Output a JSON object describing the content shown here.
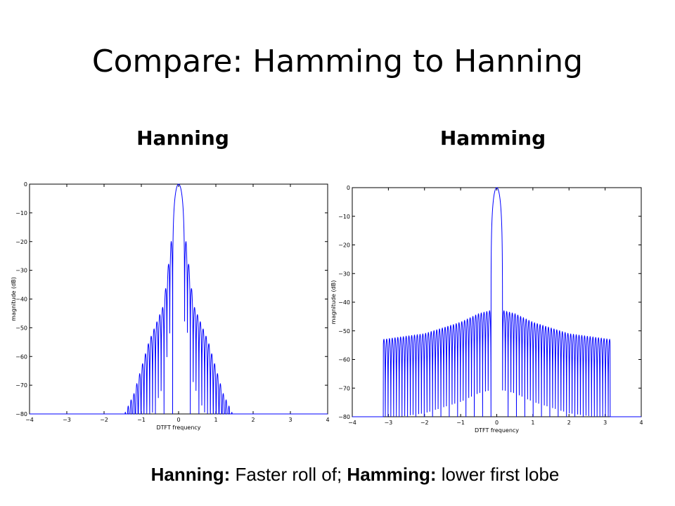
{
  "slide": {
    "title": "Compare: Hamming to Hanning",
    "left_label": "Hanning",
    "right_label": "Hamming",
    "caption": {
      "k1": "Hanning:",
      "t1": " Faster roll of; ",
      "k2": "Hamming:",
      "t2": " lower first lobe"
    }
  },
  "chart_data": [
    {
      "type": "line",
      "title": "",
      "xlabel": "DTFT frequency",
      "ylabel": "magnitude (dB)",
      "xlim": [
        -4,
        4
      ],
      "ylim": [
        -80,
        0
      ],
      "xticks": [
        -4,
        -3,
        -2,
        -1,
        0,
        1,
        2,
        3,
        4
      ],
      "yticks": [
        0,
        -10,
        -20,
        -30,
        -40,
        -50,
        -60,
        -70,
        -80
      ],
      "xtick_labels": [
        "−4",
        "−3",
        "−2",
        "−1",
        "0",
        "1",
        "2",
        "3",
        "4"
      ],
      "ytick_labels": [
        "0",
        "−10",
        "−20",
        "−30",
        "−40",
        "−50",
        "−60",
        "−70",
        "−80"
      ],
      "series": [
        {
          "color": "#0000ff",
          "mainlobe_halfwidth": 0.16,
          "sidelobe_spacing": 0.077,
          "sidelobes": [
            [
              0.2,
              -20
            ],
            [
              0.4,
              -42
            ],
            [
              0.8,
              -55
            ],
            [
              1.2,
              -73
            ],
            [
              1.45,
              -80
            ]
          ],
          "floor": -80
        }
      ]
    },
    {
      "type": "line",
      "title": "",
      "xlabel": "DTFT frequency",
      "ylabel": "magnitude (dB)",
      "xlim": [
        -4,
        4
      ],
      "ylim": [
        -80,
        0
      ],
      "xticks": [
        -4,
        -3,
        -2,
        -1,
        0,
        1,
        2,
        3,
        4
      ],
      "yticks": [
        0,
        -10,
        -20,
        -30,
        -40,
        -50,
        -60,
        -70,
        -80
      ],
      "xtick_labels": [
        "−4",
        "−3",
        "−2",
        "−1",
        "0",
        "1",
        "2",
        "3",
        "4"
      ],
      "ytick_labels": [
        "0",
        "−10",
        "−20",
        "−30",
        "−40",
        "−50",
        "−60",
        "−70",
        "−80"
      ],
      "series": [
        {
          "color": "#0000ff",
          "mainlobe_halfwidth": 0.16,
          "sidelobe_spacing": 0.077,
          "sidelobes": [
            [
              0.2,
              -43
            ],
            [
              0.5,
              -44
            ],
            [
              1.0,
              -47
            ],
            [
              2.0,
              -51
            ],
            [
              3.14,
              -53
            ]
          ],
          "xmax": 3.14,
          "floor": -80
        }
      ]
    }
  ]
}
